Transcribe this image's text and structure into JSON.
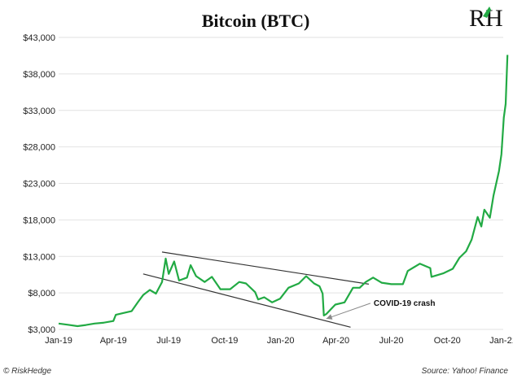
{
  "chart_data": {
    "type": "line",
    "title": "Bitcoin (BTC)",
    "xlabel": "",
    "ylabel": "",
    "y_ticks": [
      "$3,000",
      "$8,000",
      "$13,000",
      "$18,000",
      "$23,000",
      "$28,000",
      "$33,000",
      "$38,000",
      "$43,000"
    ],
    "y_tick_values": [
      3000,
      8000,
      13000,
      18000,
      23000,
      28000,
      33000,
      38000,
      43000
    ],
    "ylim": [
      3000,
      43000
    ],
    "x_ticks": [
      "Jan-19",
      "Apr-19",
      "Jul-19",
      "Oct-19",
      "Jan-20",
      "Apr-20",
      "Jul-20",
      "Oct-20",
      "Jan-21"
    ],
    "x_tick_values": [
      "2019-01-01",
      "2019-04-01",
      "2019-07-01",
      "2019-10-01",
      "2020-01-01",
      "2020-04-01",
      "2020-07-01",
      "2020-10-01",
      "2021-01-01"
    ],
    "xlim": [
      "2019-01-01",
      "2021-01-01"
    ],
    "grid": "horizontal",
    "series": [
      {
        "color": "#22aa44",
        "points": [
          [
            "2019-01-01",
            3800
          ],
          [
            "2019-01-15",
            3650
          ],
          [
            "2019-02-01",
            3450
          ],
          [
            "2019-02-15",
            3600
          ],
          [
            "2019-03-01",
            3800
          ],
          [
            "2019-03-15",
            3900
          ],
          [
            "2019-04-01",
            4150
          ],
          [
            "2019-04-05",
            5000
          ],
          [
            "2019-04-20",
            5300
          ],
          [
            "2019-05-01",
            5500
          ],
          [
            "2019-05-12",
            6800
          ],
          [
            "2019-05-20",
            7700
          ],
          [
            "2019-05-31",
            8400
          ],
          [
            "2019-06-10",
            7900
          ],
          [
            "2019-06-20",
            9500
          ],
          [
            "2019-06-26",
            12700
          ],
          [
            "2019-07-01",
            10600
          ],
          [
            "2019-07-10",
            12300
          ],
          [
            "2019-07-18",
            9700
          ],
          [
            "2019-07-31",
            10100
          ],
          [
            "2019-08-06",
            11800
          ],
          [
            "2019-08-15",
            10300
          ],
          [
            "2019-08-29",
            9500
          ],
          [
            "2019-09-10",
            10200
          ],
          [
            "2019-09-24",
            8500
          ],
          [
            "2019-10-10",
            8500
          ],
          [
            "2019-10-25",
            9500
          ],
          [
            "2019-11-05",
            9300
          ],
          [
            "2019-11-20",
            8100
          ],
          [
            "2019-11-25",
            7100
          ],
          [
            "2019-12-05",
            7400
          ],
          [
            "2019-12-18",
            6700
          ],
          [
            "2019-12-31",
            7200
          ],
          [
            "2020-01-14",
            8700
          ],
          [
            "2020-01-31",
            9300
          ],
          [
            "2020-02-12",
            10300
          ],
          [
            "2020-02-25",
            9300
          ],
          [
            "2020-03-05",
            8900
          ],
          [
            "2020-03-10",
            7900
          ],
          [
            "2020-03-12",
            4900
          ],
          [
            "2020-03-16",
            5100
          ],
          [
            "2020-03-31",
            6400
          ],
          [
            "2020-04-15",
            6700
          ],
          [
            "2020-04-29",
            8700
          ],
          [
            "2020-05-10",
            8700
          ],
          [
            "2020-05-20",
            9500
          ],
          [
            "2020-06-01",
            10100
          ],
          [
            "2020-06-15",
            9400
          ],
          [
            "2020-07-01",
            9200
          ],
          [
            "2020-07-20",
            9200
          ],
          [
            "2020-07-28",
            11000
          ],
          [
            "2020-08-17",
            12000
          ],
          [
            "2020-09-03",
            11400
          ],
          [
            "2020-09-05",
            10200
          ],
          [
            "2020-09-25",
            10700
          ],
          [
            "2020-10-10",
            11300
          ],
          [
            "2020-10-21",
            12800
          ],
          [
            "2020-11-01",
            13700
          ],
          [
            "2020-11-10",
            15300
          ],
          [
            "2020-11-20",
            18400
          ],
          [
            "2020-11-26",
            17100
          ],
          [
            "2020-12-01",
            19400
          ],
          [
            "2020-12-10",
            18300
          ],
          [
            "2020-12-16",
            21300
          ],
          [
            "2020-12-25",
            24700
          ],
          [
            "2020-12-29",
            27000
          ],
          [
            "2021-01-02",
            32000
          ],
          [
            "2021-01-05",
            33900
          ],
          [
            "2021-01-08",
            40600
          ]
        ]
      }
    ],
    "trendlines": [
      {
        "from": [
          "2019-06-20",
          13600
        ],
        "to": [
          "2020-05-25",
          9200
        ]
      },
      {
        "from": [
          "2019-05-20",
          10600
        ],
        "to": [
          "2020-04-25",
          3300
        ]
      }
    ],
    "annotations": [
      {
        "text": "COVID-19 crash",
        "x": "2020-03-12",
        "y": 4900,
        "text_x": "2020-06-02",
        "text_y": 6800
      }
    ]
  },
  "footer": {
    "left": "© RiskHedge",
    "right": "Source: Yahoo! Finance"
  },
  "logo": {
    "text": "RH",
    "icon": "riskhedge-logo-icon",
    "accent_color": "#22aa44"
  }
}
